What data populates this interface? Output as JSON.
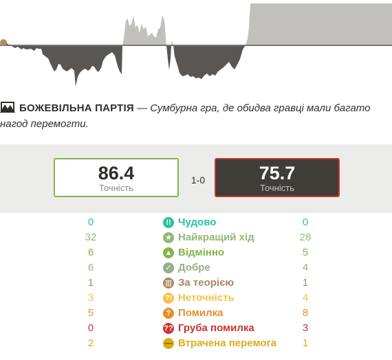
{
  "headline": {
    "title": "Божевільна партія",
    "separator": " — ",
    "description": "Сумбурна гра, де обидва гравці мали багато нагод перемогти."
  },
  "accuracy": {
    "white": {
      "value": "86.4",
      "label": "Точність",
      "border_color": "#81b64c"
    },
    "black": {
      "value": "75.7",
      "label": "Точність",
      "border_color": "#c53a32"
    },
    "result": "1-0"
  },
  "classifications": [
    {
      "key": "brilliant",
      "label": "Чудово",
      "icon": "brilliant-icon",
      "glyph": "!!",
      "color": "#26c2a3",
      "white": "0",
      "black": "0"
    },
    {
      "key": "best",
      "label": "Найкращий хід",
      "icon": "star-icon",
      "glyph": "★",
      "color": "#95b776",
      "white": "32",
      "black": "28"
    },
    {
      "key": "excellent",
      "label": "Відмінно",
      "icon": "thumbs-up-icon",
      "glyph": "▲",
      "color": "#81b64c",
      "white": "6",
      "black": "5"
    },
    {
      "key": "good",
      "label": "Добре",
      "icon": "check-icon",
      "glyph": "✓",
      "color": "#95af8a",
      "white": "6",
      "black": "4"
    },
    {
      "key": "book",
      "label": "За теорією",
      "icon": "book-icon",
      "glyph": "▥",
      "color": "#a88865",
      "white": "1",
      "black": "1"
    },
    {
      "key": "inaccuracy",
      "label": "Неточність",
      "icon": "inaccuracy-icon",
      "glyph": "?!",
      "color": "#f7c045",
      "white": "3",
      "black": "4"
    },
    {
      "key": "mistake",
      "label": "Помилка",
      "icon": "mistake-icon",
      "glyph": "?",
      "color": "#e58f2a",
      "white": "5",
      "black": "8"
    },
    {
      "key": "blunder",
      "label": "Груба помилка",
      "icon": "blunder-icon",
      "glyph": "??",
      "color": "#ca3431",
      "white": "0",
      "black": "3"
    },
    {
      "key": "miss",
      "label": "Втрачена перемога",
      "icon": "miss-icon",
      "glyph": "—",
      "color": "#dbac16",
      "white": "2",
      "black": "1"
    }
  ]
}
